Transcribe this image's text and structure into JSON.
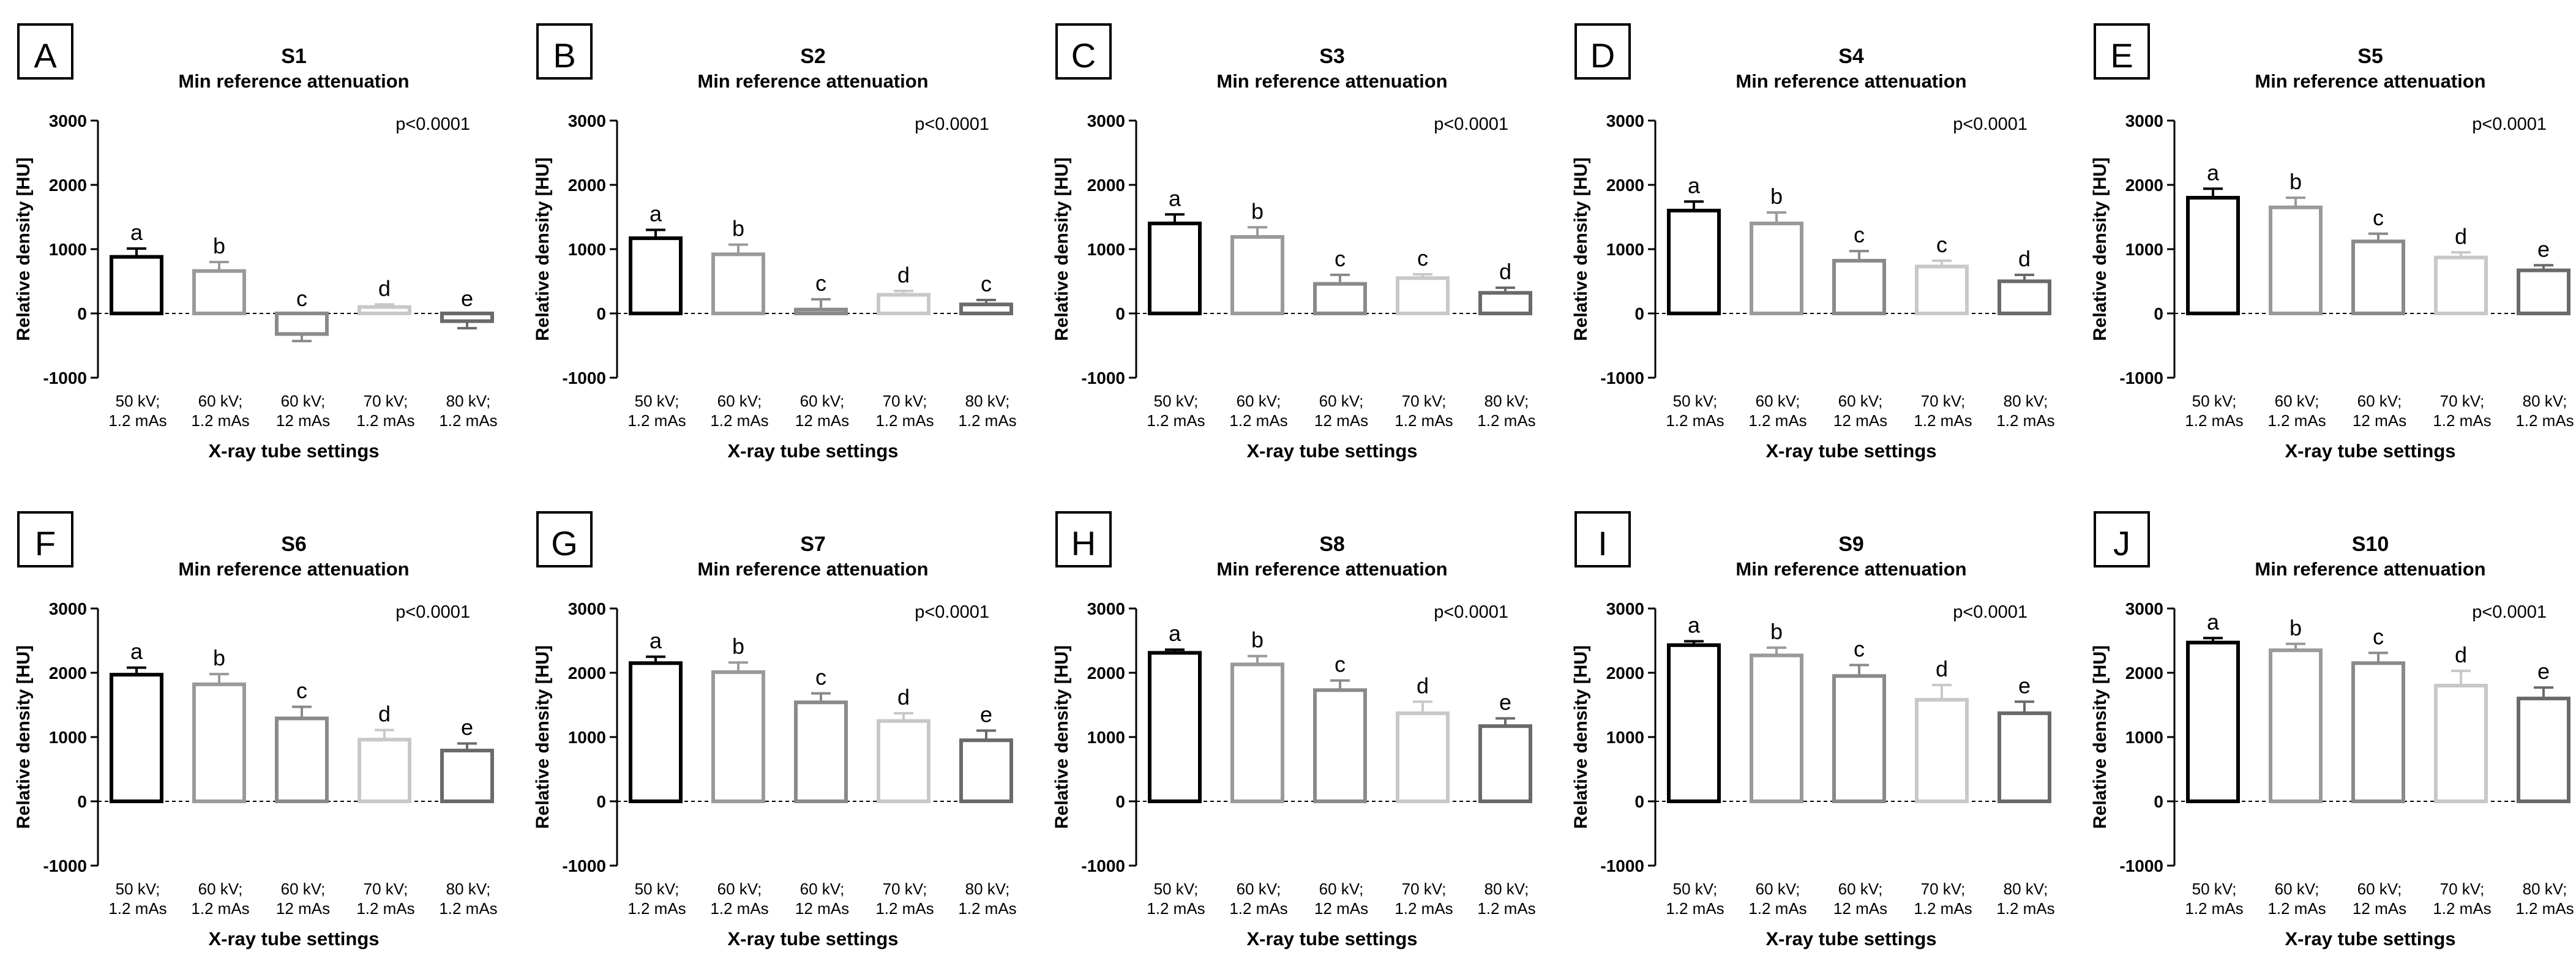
{
  "chart_data": [
    {
      "type": "bar",
      "panel_letter": "A",
      "title": "S1",
      "subtitle": "Min reference attenuation",
      "xlabel": "X-ray tube settings",
      "ylabel": "Relative density [HU]",
      "ylim": [
        -1000,
        3000
      ],
      "yticks": [
        -1000,
        0,
        1000,
        2000,
        3000
      ],
      "p_value": "p<0.0001",
      "categories": [
        [
          "50 kV;",
          "1.2 mAs"
        ],
        [
          "60 kV;",
          "1.2 mAs"
        ],
        [
          "60 kV;",
          "12 mAs"
        ],
        [
          "70 kV;",
          "1.2 mAs"
        ],
        [
          "80 kV;",
          "1.2 mAs"
        ]
      ],
      "values": [
        880,
        660,
        -320,
        100,
        -120
      ],
      "errors": [
        130,
        140,
        110,
        40,
        110
      ],
      "letters": [
        "a",
        "b",
        "c",
        "d",
        "e"
      ],
      "colors": [
        "#000000",
        "#9a9a9a",
        "#8a8a8a",
        "#c8c8c8",
        "#6a6a6a"
      ]
    },
    {
      "type": "bar",
      "panel_letter": "B",
      "title": "S2",
      "subtitle": "Min reference attenuation",
      "xlabel": "X-ray tube settings",
      "ylabel": "Relative density [HU]",
      "ylim": [
        -1000,
        3000
      ],
      "yticks": [
        -1000,
        0,
        1000,
        2000,
        3000
      ],
      "p_value": "p<0.0001",
      "categories": [
        [
          "50 kV;",
          "1.2 mAs"
        ],
        [
          "60 kV;",
          "1.2 mAs"
        ],
        [
          "60 kV;",
          "12 mAs"
        ],
        [
          "70 kV;",
          "1.2 mAs"
        ],
        [
          "80 kV;",
          "1.2 mAs"
        ]
      ],
      "values": [
        1170,
        920,
        60,
        290,
        140
      ],
      "errors": [
        130,
        150,
        160,
        60,
        70
      ],
      "letters": [
        "a",
        "b",
        "c",
        "d",
        "c"
      ],
      "colors": [
        "#000000",
        "#9a9a9a",
        "#8a8a8a",
        "#c8c8c8",
        "#6a6a6a"
      ]
    },
    {
      "type": "bar",
      "panel_letter": "C",
      "title": "S3",
      "subtitle": "Min reference attenuation",
      "xlabel": "X-ray tube settings",
      "ylabel": "Relative density [HU]",
      "ylim": [
        -1000,
        3000
      ],
      "yticks": [
        -1000,
        0,
        1000,
        2000,
        3000
      ],
      "p_value": "p<0.0001",
      "categories": [
        [
          "50 kV;",
          "1.2 mAs"
        ],
        [
          "60 kV;",
          "1.2 mAs"
        ],
        [
          "60 kV;",
          "12 mAs"
        ],
        [
          "70 kV;",
          "1.2 mAs"
        ],
        [
          "80 kV;",
          "1.2 mAs"
        ]
      ],
      "values": [
        1400,
        1190,
        460,
        550,
        320
      ],
      "errors": [
        140,
        150,
        140,
        60,
        80
      ],
      "letters": [
        "a",
        "b",
        "c",
        "c",
        "d"
      ],
      "colors": [
        "#000000",
        "#9a9a9a",
        "#8a8a8a",
        "#c8c8c8",
        "#6a6a6a"
      ]
    },
    {
      "type": "bar",
      "panel_letter": "D",
      "title": "S4",
      "subtitle": "Min reference attenuation",
      "xlabel": "X-ray tube settings",
      "ylabel": "Relative density [HU]",
      "ylim": [
        -1000,
        3000
      ],
      "yticks": [
        -1000,
        0,
        1000,
        2000,
        3000
      ],
      "p_value": "p<0.0001",
      "categories": [
        [
          "50 kV;",
          "1.2 mAs"
        ],
        [
          "60 kV;",
          "1.2 mAs"
        ],
        [
          "60 kV;",
          "12 mAs"
        ],
        [
          "70 kV;",
          "1.2 mAs"
        ],
        [
          "80 kV;",
          "1.2 mAs"
        ]
      ],
      "values": [
        1600,
        1400,
        820,
        730,
        500
      ],
      "errors": [
        140,
        170,
        150,
        90,
        100
      ],
      "letters": [
        "a",
        "b",
        "c",
        "c",
        "d"
      ],
      "colors": [
        "#000000",
        "#9a9a9a",
        "#8a8a8a",
        "#c8c8c8",
        "#6a6a6a"
      ]
    },
    {
      "type": "bar",
      "panel_letter": "E",
      "title": "S5",
      "subtitle": "Min reference attenuation",
      "xlabel": "X-ray tube settings",
      "ylabel": "Relative density [HU]",
      "ylim": [
        -1000,
        3000
      ],
      "yticks": [
        -1000,
        0,
        1000,
        2000,
        3000
      ],
      "p_value": "p<0.0001",
      "categories": [
        [
          "50 kV;",
          "1.2 mAs"
        ],
        [
          "60 kV;",
          "1.2 mAs"
        ],
        [
          "60 kV;",
          "12 mAs"
        ],
        [
          "70 kV;",
          "1.2 mAs"
        ],
        [
          "80 kV;",
          "1.2 mAs"
        ]
      ],
      "values": [
        1800,
        1650,
        1120,
        870,
        670
      ],
      "errors": [
        140,
        150,
        120,
        80,
        80
      ],
      "letters": [
        "a",
        "b",
        "c",
        "d",
        "e"
      ],
      "colors": [
        "#000000",
        "#9a9a9a",
        "#8a8a8a",
        "#c8c8c8",
        "#6a6a6a"
      ]
    },
    {
      "type": "bar",
      "panel_letter": "F",
      "title": "S6",
      "subtitle": "Min reference attenuation",
      "xlabel": "X-ray tube settings",
      "ylabel": "Relative density [HU]",
      "ylim": [
        -1000,
        3000
      ],
      "yticks": [
        -1000,
        0,
        1000,
        2000,
        3000
      ],
      "p_value": "p<0.0001",
      "categories": [
        [
          "50 kV;",
          "1.2 mAs"
        ],
        [
          "60 kV;",
          "1.2 mAs"
        ],
        [
          "60 kV;",
          "12 mAs"
        ],
        [
          "70 kV;",
          "1.2 mAs"
        ],
        [
          "80 kV;",
          "1.2 mAs"
        ]
      ],
      "values": [
        1970,
        1820,
        1290,
        960,
        790
      ],
      "errors": [
        110,
        160,
        180,
        150,
        110
      ],
      "letters": [
        "a",
        "b",
        "c",
        "d",
        "e"
      ],
      "colors": [
        "#000000",
        "#9a9a9a",
        "#8a8a8a",
        "#c8c8c8",
        "#6a6a6a"
      ]
    },
    {
      "type": "bar",
      "panel_letter": "G",
      "title": "S7",
      "subtitle": "Min reference attenuation",
      "xlabel": "X-ray tube settings",
      "ylabel": "Relative density [HU]",
      "ylim": [
        -1000,
        3000
      ],
      "yticks": [
        -1000,
        0,
        1000,
        2000,
        3000
      ],
      "p_value": "p<0.0001",
      "categories": [
        [
          "50 kV;",
          "1.2 mAs"
        ],
        [
          "60 kV;",
          "1.2 mAs"
        ],
        [
          "60 kV;",
          "12 mAs"
        ],
        [
          "70 kV;",
          "1.2 mAs"
        ],
        [
          "80 kV;",
          "1.2 mAs"
        ]
      ],
      "values": [
        2150,
        2010,
        1540,
        1250,
        950
      ],
      "errors": [
        100,
        150,
        140,
        120,
        150
      ],
      "letters": [
        "a",
        "b",
        "c",
        "d",
        "e"
      ],
      "colors": [
        "#000000",
        "#9a9a9a",
        "#8a8a8a",
        "#c8c8c8",
        "#6a6a6a"
      ]
    },
    {
      "type": "bar",
      "panel_letter": "H",
      "title": "S8",
      "subtitle": "Min reference attenuation",
      "xlabel": "X-ray tube settings",
      "ylabel": "Relative density [HU]",
      "ylim": [
        -1000,
        3000
      ],
      "yticks": [
        -1000,
        0,
        1000,
        2000,
        3000
      ],
      "p_value": "p<0.0001",
      "categories": [
        [
          "50 kV;",
          "1.2 mAs"
        ],
        [
          "60 kV;",
          "1.2 mAs"
        ],
        [
          "60 kV;",
          "12 mAs"
        ],
        [
          "70 kV;",
          "1.2 mAs"
        ],
        [
          "80 kV;",
          "1.2 mAs"
        ]
      ],
      "values": [
        2310,
        2130,
        1730,
        1370,
        1170
      ],
      "errors": [
        50,
        130,
        150,
        180,
        120
      ],
      "letters": [
        "a",
        "b",
        "c",
        "d",
        "e"
      ],
      "colors": [
        "#000000",
        "#9a9a9a",
        "#8a8a8a",
        "#c8c8c8",
        "#6a6a6a"
      ]
    },
    {
      "type": "bar",
      "panel_letter": "I",
      "title": "S9",
      "subtitle": "Min reference attenuation",
      "xlabel": "X-ray tube settings",
      "ylabel": "Relative density [HU]",
      "ylim": [
        -1000,
        3000
      ],
      "yticks": [
        -1000,
        0,
        1000,
        2000,
        3000
      ],
      "p_value": "p<0.0001",
      "categories": [
        [
          "50 kV;",
          "1.2 mAs"
        ],
        [
          "60 kV;",
          "1.2 mAs"
        ],
        [
          "60 kV;",
          "12 mAs"
        ],
        [
          "70 kV;",
          "1.2 mAs"
        ],
        [
          "80 kV;",
          "1.2 mAs"
        ]
      ],
      "values": [
        2430,
        2270,
        1950,
        1580,
        1370
      ],
      "errors": [
        60,
        120,
        170,
        230,
        180
      ],
      "letters": [
        "a",
        "b",
        "c",
        "d",
        "e"
      ],
      "colors": [
        "#000000",
        "#9a9a9a",
        "#8a8a8a",
        "#c8c8c8",
        "#6a6a6a"
      ]
    },
    {
      "type": "bar",
      "panel_letter": "J",
      "title": "S10",
      "subtitle": "Min reference attenuation",
      "xlabel": "X-ray tube settings",
      "ylabel": "Relative density [HU]",
      "ylim": [
        -1000,
        3000
      ],
      "yticks": [
        -1000,
        0,
        1000,
        2000,
        3000
      ],
      "p_value": "p<0.0001",
      "categories": [
        [
          "50 kV;",
          "1.2 mAs"
        ],
        [
          "60 kV;",
          "1.2 mAs"
        ],
        [
          "60 kV;",
          "12 mAs"
        ],
        [
          "70 kV;",
          "1.2 mAs"
        ],
        [
          "80 kV;",
          "1.2 mAs"
        ]
      ],
      "values": [
        2470,
        2350,
        2150,
        1800,
        1600
      ],
      "errors": [
        70,
        100,
        160,
        230,
        170
      ],
      "letters": [
        "a",
        "b",
        "c",
        "d",
        "e"
      ],
      "colors": [
        "#000000",
        "#9a9a9a",
        "#8a8a8a",
        "#c8c8c8",
        "#6a6a6a"
      ]
    }
  ]
}
